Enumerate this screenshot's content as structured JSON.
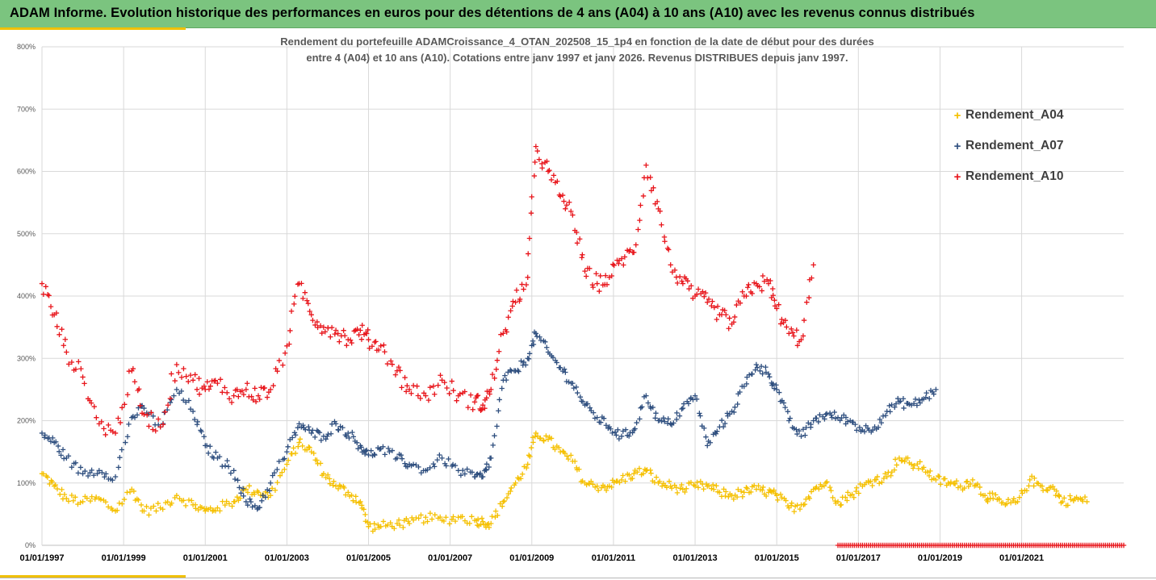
{
  "header": {
    "title": "ADAM Informe. Evolution historique des performances en euros pour des détentions de 4 ans (A04) à 10 ans (A10) avec les revenus connus distribués"
  },
  "colors": {
    "header_bg": "#7bc47f",
    "accent_gold": "#f0c000",
    "A04": "#f5c000",
    "A07": "#2f4f7f",
    "A10": "#e8151b"
  },
  "chart_data": {
    "type": "scatter",
    "title_lines": [
      "Rendement du portefeuille ADAMCroissance_4_OTAN_202508_15_1p4  en fonction de la date de début pour des durées",
      "entre 4 (A04) et 10 ans (A10). Cotations entre janv 1997 et janv 2026. Revenus DISTRIBUES depuis janv 1997."
    ],
    "xlabel": "",
    "ylabel": "",
    "xlim": [
      1997.0,
      2023.5
    ],
    "ylim": [
      0,
      800
    ],
    "y_ticks": [
      0,
      100,
      200,
      300,
      400,
      500,
      600,
      700,
      800
    ],
    "y_tick_labels": [
      "0%",
      "100%",
      "200%",
      "300%",
      "400%",
      "500%",
      "600%",
      "700%",
      "800%"
    ],
    "x_ticks": [
      1997,
      1999,
      2001,
      2003,
      2005,
      2007,
      2009,
      2011,
      2013,
      2015,
      2017,
      2019,
      2021
    ],
    "x_tick_labels": [
      "01/01/1997",
      "01/01/1999",
      "01/01/2001",
      "01/01/2003",
      "01/01/2005",
      "01/01/2007",
      "01/01/2009",
      "01/01/2011",
      "01/01/2013",
      "01/01/2015",
      "01/01/2017",
      "01/01/2019",
      "01/01/2021"
    ],
    "legend_position": "right",
    "marker": "+",
    "series": [
      {
        "name": "Rendement_A04",
        "color": "#f5c000",
        "x": [
          1997.0,
          1997.3,
          1997.6,
          1998.0,
          1998.4,
          1998.8,
          1999.2,
          1999.5,
          1999.9,
          2000.3,
          2000.7,
          2001.0,
          2001.3,
          2001.7,
          2002.0,
          2002.3,
          2002.6,
          2003.0,
          2003.3,
          2003.6,
          2003.9,
          2004.2,
          2004.5,
          2004.8,
          2005.0,
          2005.3,
          2005.7,
          2006.0,
          2006.4,
          2006.8,
          2007.2,
          2007.6,
          2007.8,
          2008.0,
          2008.3,
          2008.6,
          2008.9,
          2009.1,
          2009.4,
          2009.7,
          2010.0,
          2010.3,
          2010.6,
          2010.9,
          2011.2,
          2011.5,
          2011.8,
          2012.1,
          2012.4,
          2012.7,
          2013.0,
          2013.3,
          2013.6,
          2013.9,
          2014.2,
          2014.5,
          2014.8,
          2015.0,
          2015.3,
          2015.6,
          2015.9,
          2016.2,
          2016.5,
          2016.8,
          2017.1,
          2017.4,
          2017.7,
          2018.0,
          2018.3,
          2018.6,
          2018.9,
          2019.2,
          2019.5,
          2019.8,
          2020.1,
          2020.3,
          2020.6,
          2020.9,
          2021.2,
          2021.5,
          2021.8,
          2022.0,
          2022.3,
          2022.6
        ],
        "y": [
          115,
          95,
          75,
          70,
          75,
          55,
          90,
          55,
          60,
          80,
          65,
          55,
          60,
          70,
          90,
          85,
          80,
          130,
          165,
          150,
          115,
          95,
          85,
          70,
          30,
          30,
          35,
          35,
          45,
          40,
          45,
          40,
          38,
          35,
          70,
          100,
          130,
          180,
          170,
          150,
          135,
          100,
          95,
          95,
          105,
          115,
          120,
          100,
          95,
          90,
          95,
          95,
          85,
          80,
          85,
          90,
          85,
          80,
          60,
          65,
          90,
          100,
          70,
          80,
          95,
          105,
          110,
          140,
          130,
          125,
          105,
          100,
          95,
          105,
          80,
          75,
          65,
          70,
          105,
          95,
          90,
          70,
          75,
          70
        ]
      },
      {
        "name": "Rendement_A07",
        "color": "#2f4f7f",
        "x": [
          1997.0,
          1997.3,
          1997.6,
          1998.0,
          1998.4,
          1998.8,
          1999.2,
          1999.5,
          1999.9,
          2000.3,
          2000.7,
          2001.0,
          2001.3,
          2001.7,
          2002.0,
          2002.3,
          2002.6,
          2003.0,
          2003.3,
          2003.6,
          2003.9,
          2004.2,
          2004.5,
          2004.8,
          2005.0,
          2005.3,
          2005.7,
          2006.0,
          2006.4,
          2006.8,
          2007.2,
          2007.6,
          2007.8,
          2008.0,
          2008.3,
          2008.6,
          2008.9,
          2009.1,
          2009.4,
          2009.7,
          2010.0,
          2010.3,
          2010.6,
          2010.9,
          2011.2,
          2011.5,
          2011.8,
          2012.1,
          2012.4,
          2012.7,
          2013.0,
          2013.3,
          2013.6,
          2013.9,
          2014.2,
          2014.5,
          2014.8,
          2015.0,
          2015.3,
          2015.6,
          2015.9,
          2016.2,
          2016.5,
          2016.8,
          2017.1,
          2017.4,
          2017.7,
          2018.0,
          2018.3,
          2018.6,
          2018.9
        ],
        "y": [
          180,
          165,
          140,
          115,
          120,
          110,
          205,
          220,
          190,
          250,
          215,
          160,
          140,
          120,
          70,
          60,
          100,
          150,
          195,
          180,
          175,
          195,
          180,
          160,
          145,
          155,
          140,
          130,
          120,
          140,
          120,
          110,
          110,
          140,
          265,
          280,
          300,
          340,
          310,
          285,
          260,
          225,
          205,
          190,
          175,
          185,
          240,
          200,
          195,
          220,
          240,
          160,
          190,
          215,
          255,
          290,
          275,
          250,
          200,
          175,
          200,
          210,
          205,
          200,
          185,
          190,
          215,
          230,
          225,
          235,
          250
        ]
      },
      {
        "name": "Rendement_A10",
        "color": "#e8151b",
        "x": [
          1997.0,
          1997.3,
          1997.6,
          1998.0,
          1998.4,
          1998.8,
          1999.2,
          1999.5,
          1999.9,
          2000.3,
          2000.7,
          2001.0,
          2001.3,
          2001.7,
          2002.0,
          2002.3,
          2002.6,
          2003.0,
          2003.3,
          2003.6,
          2003.9,
          2004.2,
          2004.5,
          2004.8,
          2005.0,
          2005.3,
          2005.7,
          2006.0,
          2006.4,
          2006.8,
          2007.2,
          2007.6,
          2007.8,
          2008.0,
          2008.3,
          2008.6,
          2008.9,
          2009.1,
          2009.4,
          2009.7,
          2010.0,
          2010.3,
          2010.6,
          2010.9,
          2011.2,
          2011.5,
          2011.8,
          2012.1,
          2012.4,
          2012.7,
          2013.0,
          2013.3,
          2013.6,
          2013.9,
          2014.2,
          2014.5,
          2014.8,
          2015.0,
          2015.3,
          2015.6,
          2015.9
        ],
        "y": [
          420,
          370,
          310,
          270,
          195,
          180,
          280,
          210,
          190,
          290,
          265,
          250,
          260,
          240,
          250,
          240,
          250,
          320,
          420,
          370,
          350,
          345,
          330,
          345,
          330,
          320,
          280,
          250,
          240,
          265,
          240,
          230,
          225,
          250,
          340,
          390,
          430,
          640,
          600,
          560,
          530,
          440,
          420,
          430,
          460,
          470,
          610,
          540,
          450,
          420,
          400,
          390,
          370,
          355,
          400,
          420,
          420,
          380,
          340,
          330,
          450
        ]
      }
    ]
  }
}
